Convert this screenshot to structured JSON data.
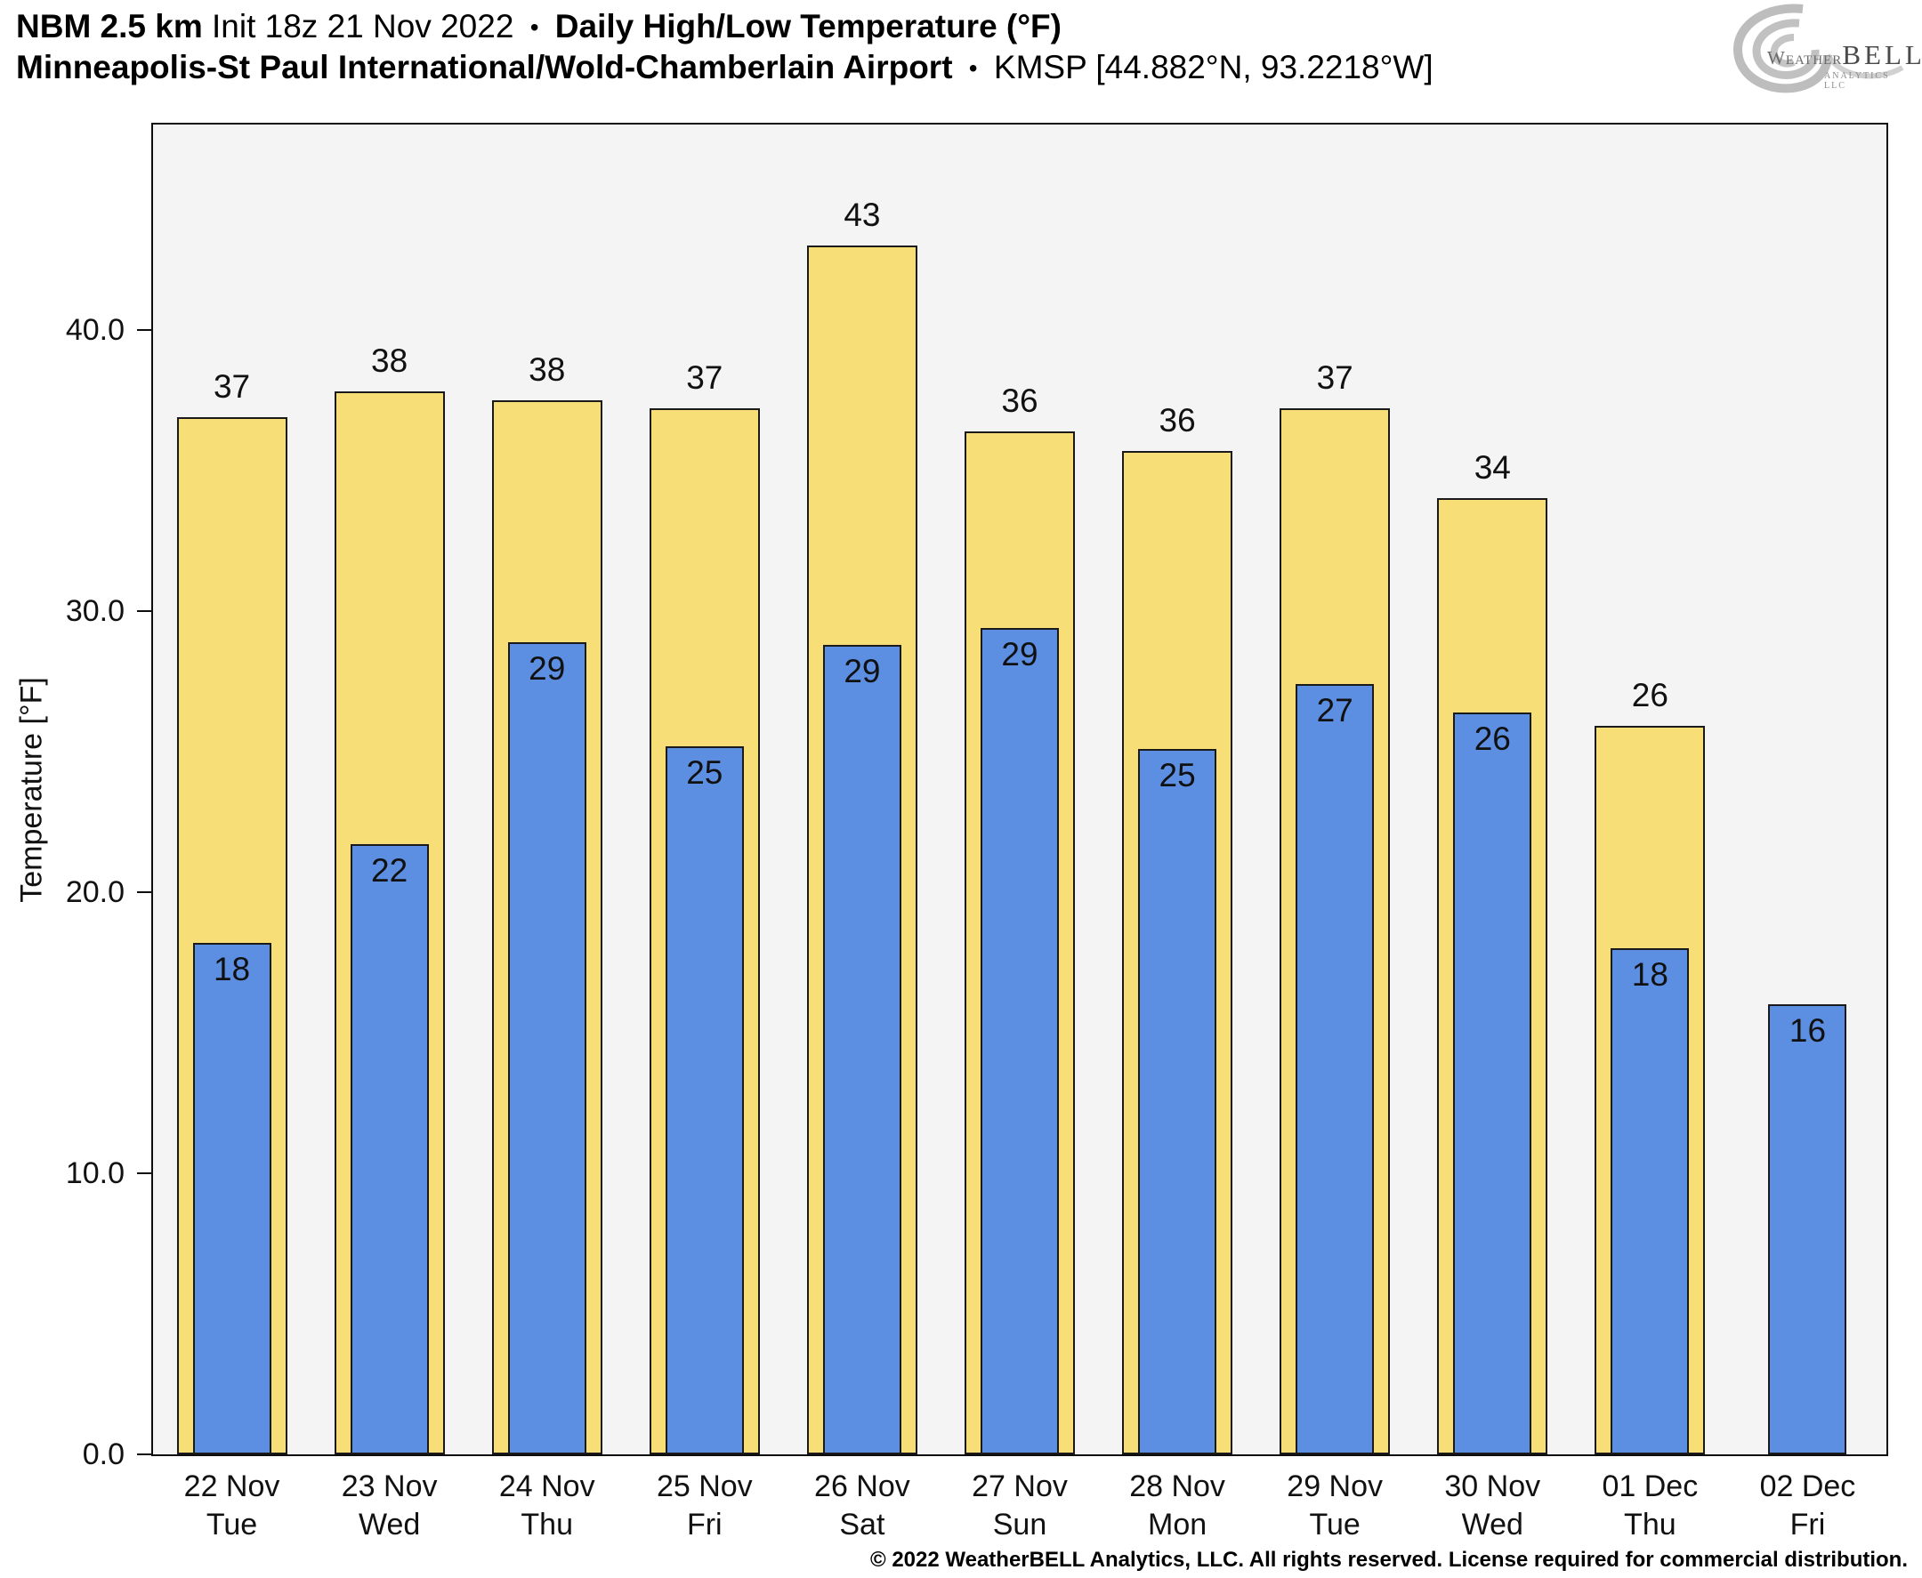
{
  "header": {
    "model": "NBM 2.5 km",
    "init": "Init 18z 21 Nov 2022",
    "separator": "•",
    "product": "Daily High/Low Temperature (°F)",
    "station": "Minneapolis-St Paul International/Wold-Chamberlain Airport",
    "station_id": "KMSP [44.882°N, 93.2218°W]"
  },
  "logo": {
    "word1": "Weather",
    "word2": "BELL",
    "tagline": "Analytics LLC"
  },
  "footer": {
    "copyright": "© 2022 WeatherBELL Analytics, LLC. All rights reserved. License required for commercial distribution."
  },
  "chart_data": {
    "type": "bar",
    "title": "Daily High/Low Temperature (°F)",
    "ylabel": "Temperature [°F]",
    "ylim": [
      0,
      47.3
    ],
    "yticks": [
      0,
      10,
      20,
      30,
      40
    ],
    "ytick_labels": [
      "0.0",
      "10.0",
      "20.0",
      "30.0",
      "40.0"
    ],
    "grid": false,
    "legend_position": "none",
    "plot_background": "#f4f4f4",
    "categories": [
      "22 Nov",
      "23 Nov",
      "24 Nov",
      "25 Nov",
      "26 Nov",
      "27 Nov",
      "28 Nov",
      "29 Nov",
      "30 Nov",
      "01 Dec",
      "02 Dec"
    ],
    "category_days": [
      "Tue",
      "Wed",
      "Thu",
      "Fri",
      "Sat",
      "Sun",
      "Mon",
      "Tue",
      "Wed",
      "Thu",
      "Fri"
    ],
    "series": [
      {
        "name": "Daily High",
        "color": "#f8de76",
        "labels": [
          37,
          38,
          38,
          37,
          43,
          36,
          36,
          37,
          34,
          26,
          null
        ],
        "values": [
          36.9,
          37.8,
          37.5,
          37.2,
          43.0,
          36.4,
          35.7,
          37.2,
          34.0,
          25.9,
          null
        ]
      },
      {
        "name": "Daily Low",
        "color": "#5c8ee2",
        "labels": [
          18,
          22,
          29,
          25,
          29,
          29,
          25,
          27,
          26,
          18,
          16
        ],
        "values": [
          18.2,
          21.7,
          28.9,
          25.2,
          28.8,
          29.4,
          25.1,
          27.4,
          26.4,
          18.0,
          16.0
        ]
      }
    ]
  }
}
